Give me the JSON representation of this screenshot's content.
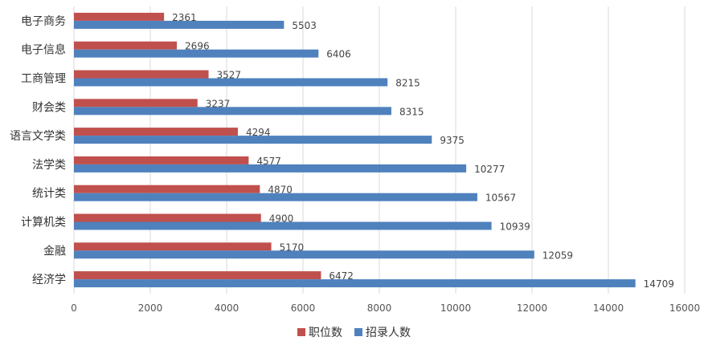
{
  "chart_data": {
    "type": "bar",
    "orientation": "horizontal",
    "categories": [
      "电子商务",
      "电子信息",
      "工商管理",
      "财会类",
      "语言文学类",
      "法学类",
      "统计类",
      "计算机类",
      "金融",
      "经济学"
    ],
    "series": [
      {
        "name": "职位数",
        "color": "#c0504d",
        "values": [
          2361,
          2696,
          3527,
          3237,
          4294,
          4577,
          4870,
          4900,
          5170,
          6472
        ]
      },
      {
        "name": "招录人数",
        "color": "#4f81bd",
        "values": [
          5503,
          6406,
          8215,
          8315,
          9375,
          10277,
          10567,
          10939,
          12059,
          14709
        ]
      }
    ],
    "xlim": [
      0,
      16000
    ],
    "xticks": [
      0,
      2000,
      4000,
      6000,
      8000,
      10000,
      12000,
      14000,
      16000
    ],
    "grid": true,
    "legend_position": "bottom"
  }
}
